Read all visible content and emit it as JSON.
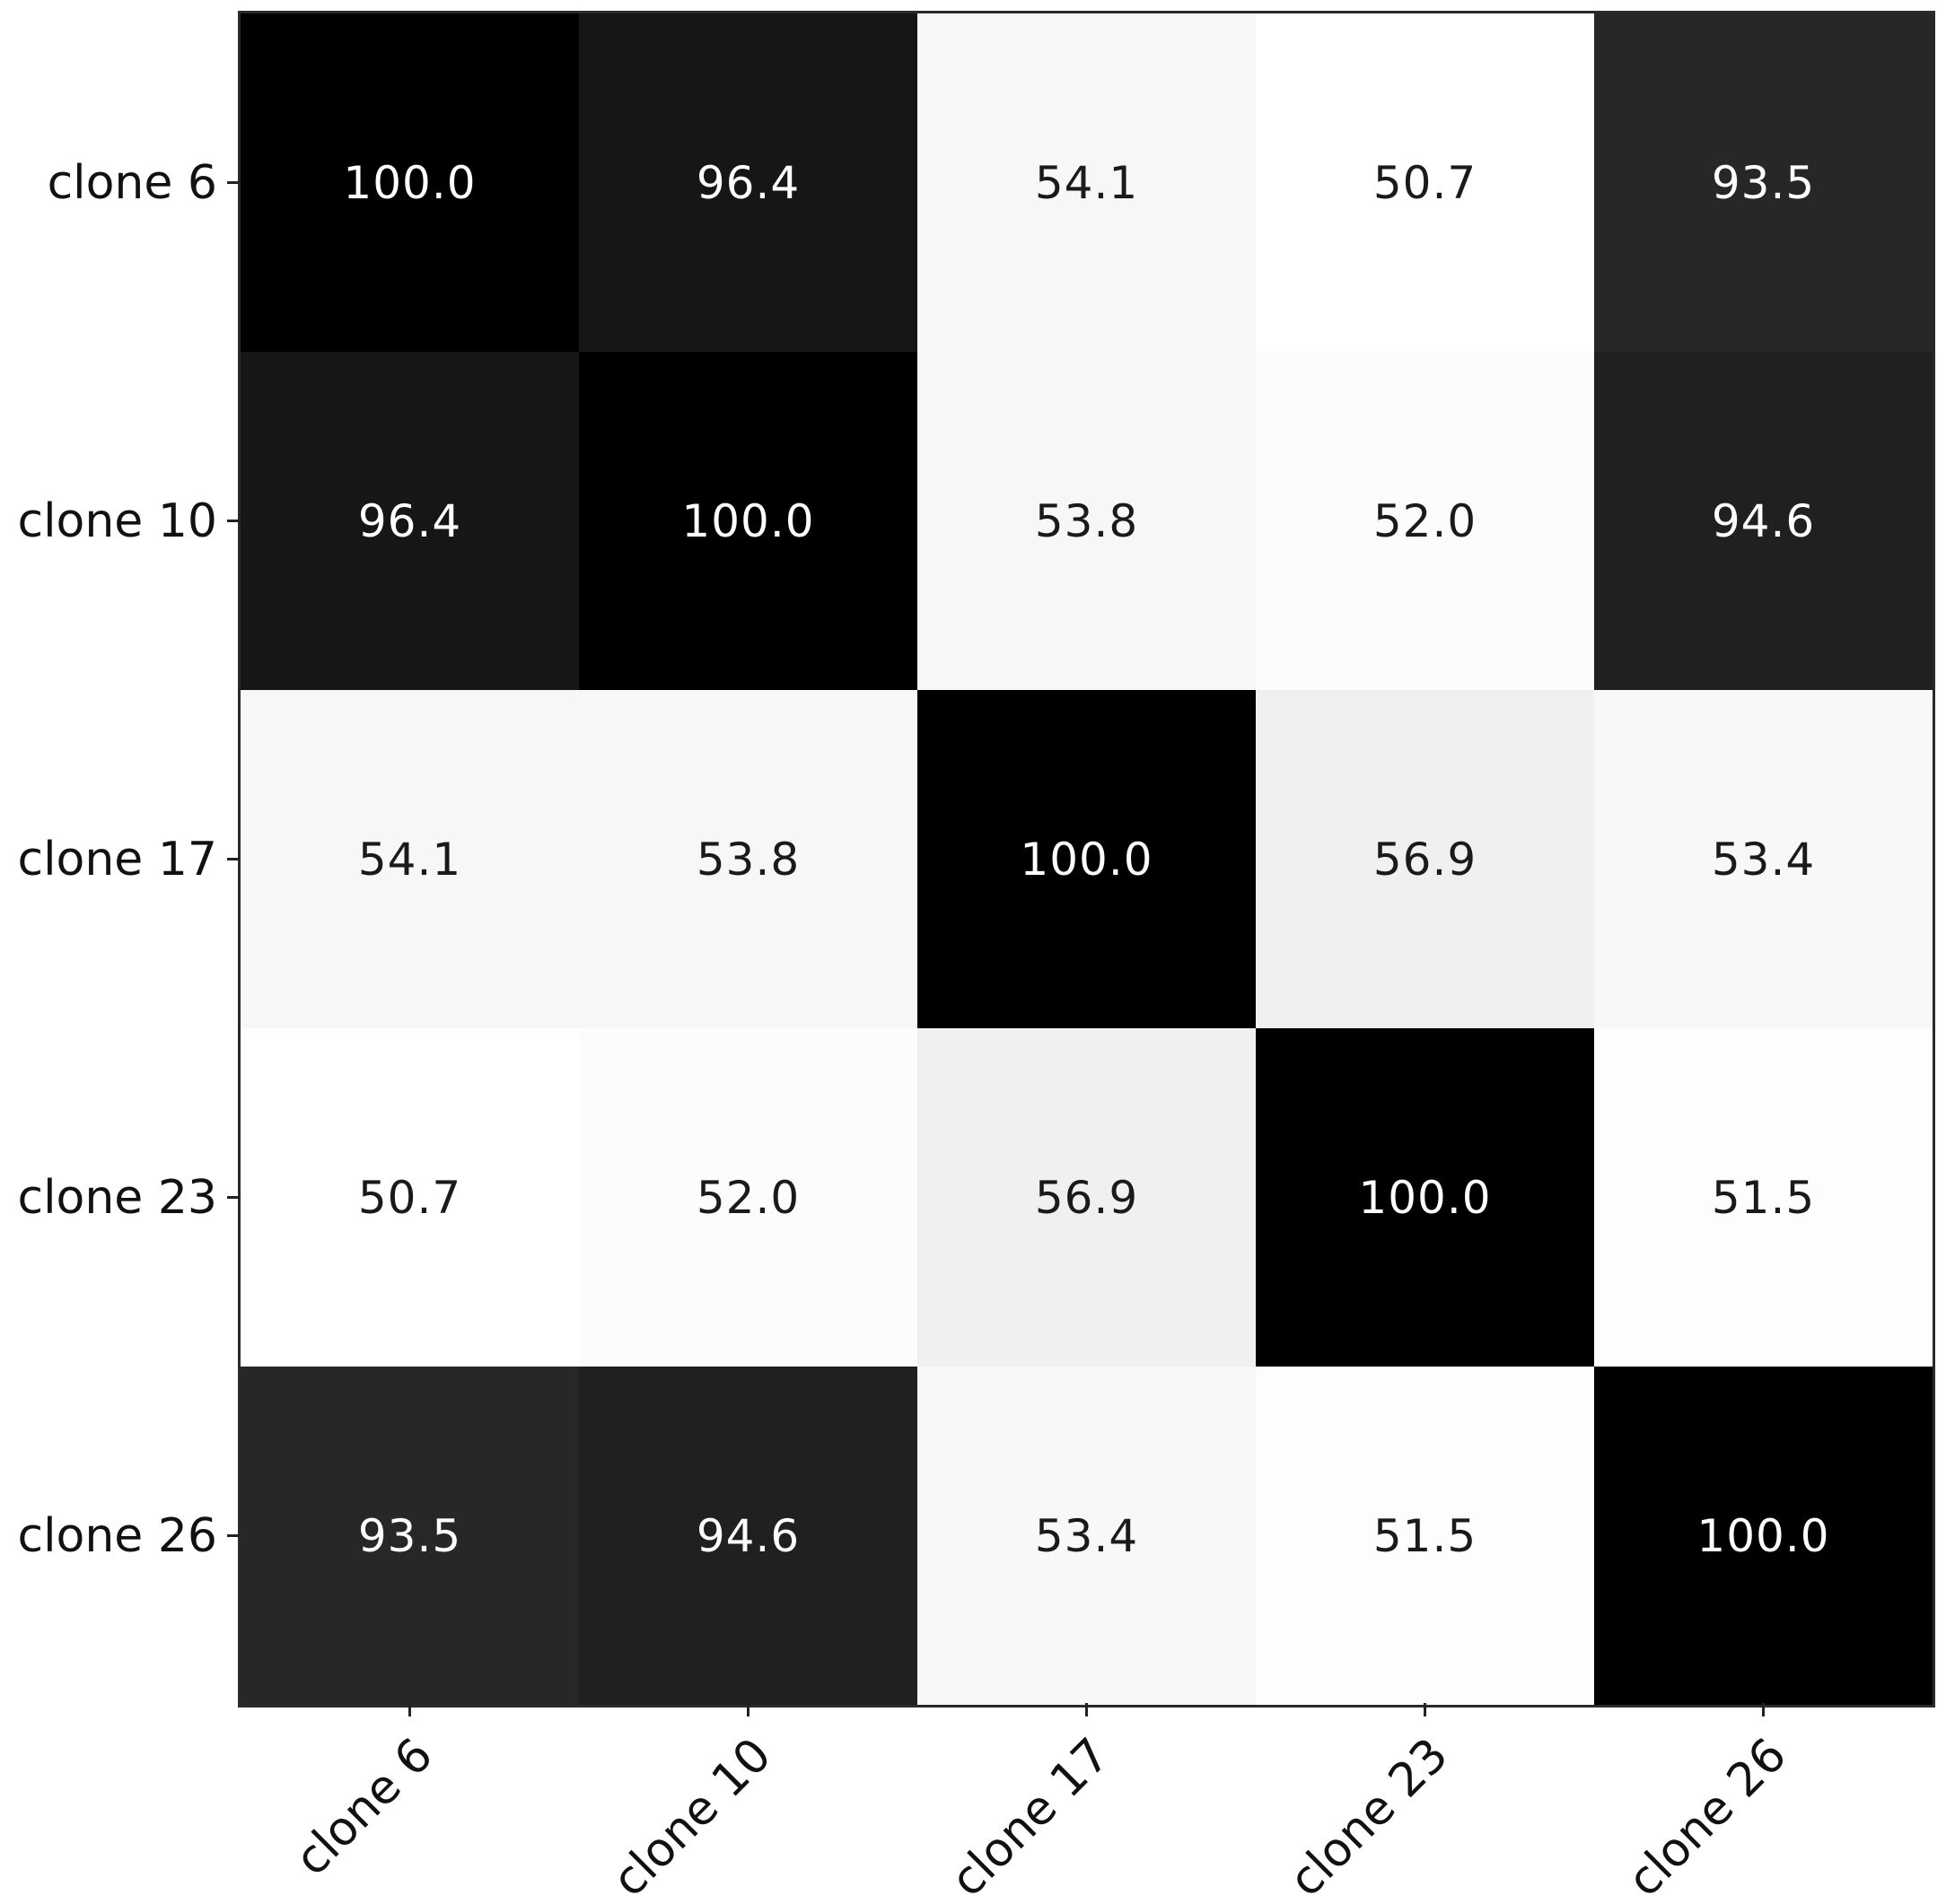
{
  "chart_data": {
    "type": "heatmap",
    "title": "",
    "xlabel": "",
    "ylabel": "",
    "categories": [
      "clone 6",
      "clone 10",
      "clone 17",
      "clone 23",
      "clone 26"
    ],
    "row_labels": [
      "clone 6",
      "clone 10",
      "clone 17",
      "clone 23",
      "clone 26"
    ],
    "col_labels": [
      "clone 6",
      "clone 10",
      "clone 17",
      "clone 23",
      "clone 26"
    ],
    "matrix": [
      [
        100.0,
        96.4,
        54.1,
        50.7,
        93.5
      ],
      [
        96.4,
        100.0,
        53.8,
        52.0,
        94.6
      ],
      [
        54.1,
        53.8,
        100.0,
        56.9,
        53.4
      ],
      [
        50.7,
        52.0,
        56.9,
        100.0,
        51.5
      ],
      [
        93.5,
        94.6,
        53.4,
        51.5,
        100.0
      ]
    ],
    "value_decimals": 1,
    "colormap": "Greys",
    "colormap_hex_stops": [
      "#ffffff",
      "#f0f0f0",
      "#d9d9d9",
      "#bdbdbd",
      "#969696",
      "#737373",
      "#525252",
      "#252525",
      "#000000"
    ],
    "vmin": 50.7,
    "vmax": 100.0,
    "annotation_color_on_dark": "#ffffff",
    "annotation_color_on_light": "#1a1a1a",
    "tick_label_color": "#111111",
    "spine_color": "#2a2a2a",
    "legend_position": "none",
    "grid": "off",
    "x_tick_rotation_deg": 45
  }
}
